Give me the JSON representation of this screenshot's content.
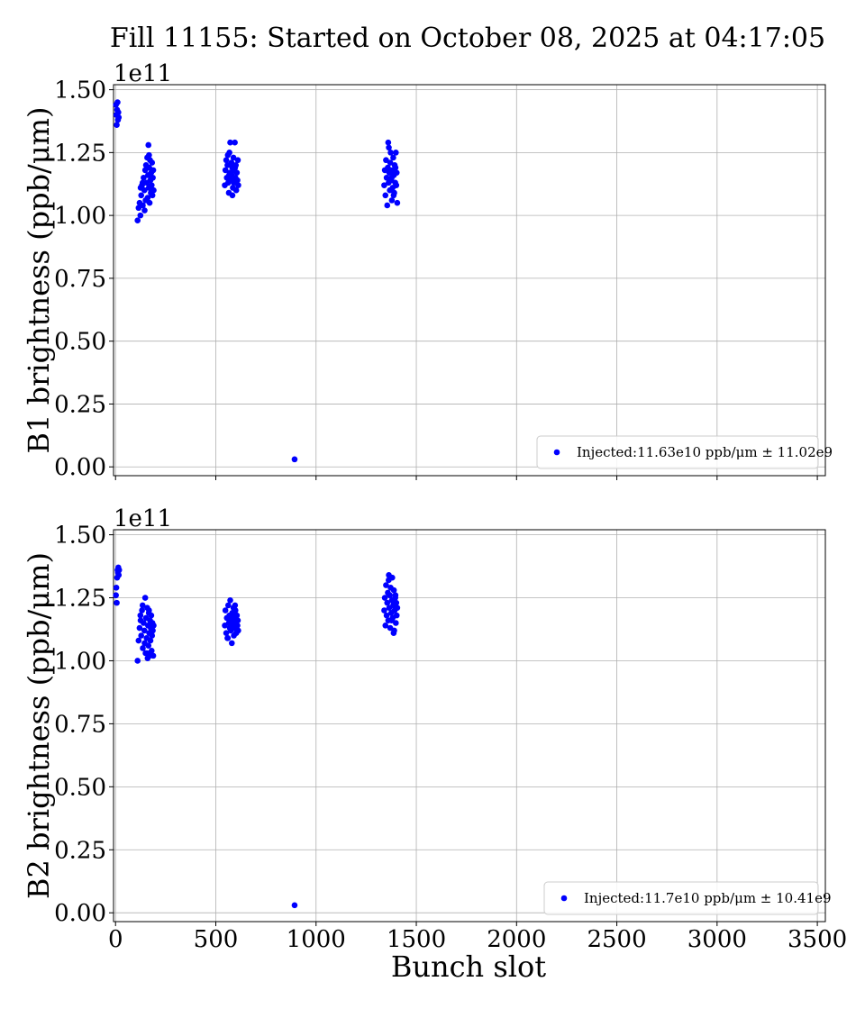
{
  "figure": {
    "title": "Fill 11155: Started on October 08, 2025 at 04:17:05",
    "xlabel": "Bunch slot"
  },
  "colors": {
    "series": "#0000ff",
    "grid": "#b0b0b0",
    "axes": "#000000"
  },
  "chart_data": [
    {
      "type": "scatter",
      "ylabel": "B1 brightness (ppb/μm)",
      "offset_text": "1e11",
      "xlim": [
        -10,
        3540
      ],
      "ylim": [
        -0.035,
        1.52
      ],
      "y_scale": 100000000000.0,
      "x_ticks": [
        0,
        500,
        1000,
        1500,
        2000,
        2500,
        3000,
        3500
      ],
      "y_ticks": [
        0.0,
        0.25,
        0.5,
        0.75,
        1.0,
        1.25,
        1.5
      ],
      "y_tick_labels": [
        "0.00",
        "0.25",
        "0.50",
        "0.75",
        "1.00",
        "1.25",
        "1.50"
      ],
      "grid": true,
      "legend_position": "lower-right",
      "series": [
        {
          "name": "Injected:11.63e10 ppb/μm ± 11.02e9",
          "color": "#0000ff",
          "points": [
            [
              2,
              1.44
            ],
            [
              4,
              1.4
            ],
            [
              6,
              1.36
            ],
            [
              8,
              1.42
            ],
            [
              10,
              1.45
            ],
            [
              12,
              1.38
            ],
            [
              14,
              1.41
            ],
            [
              16,
              1.39
            ],
            [
              110,
              0.98
            ],
            [
              115,
              1.03
            ],
            [
              120,
              1.05
            ],
            [
              124,
              1.0
            ],
            [
              128,
              1.08
            ],
            [
              132,
              1.12
            ],
            [
              136,
              1.04
            ],
            [
              140,
              1.15
            ],
            [
              144,
              1.1
            ],
            [
              148,
              1.18
            ],
            [
              150,
              1.06
            ],
            [
              152,
              1.2
            ],
            [
              155,
              1.13
            ],
            [
              158,
              1.23
            ],
            [
              160,
              1.07
            ],
            [
              162,
              1.16
            ],
            [
              164,
              1.28
            ],
            [
              166,
              1.11
            ],
            [
              168,
              1.19
            ],
            [
              170,
              1.05
            ],
            [
              172,
              1.22
            ],
            [
              174,
              1.14
            ],
            [
              176,
              1.09
            ],
            [
              178,
              1.17
            ],
            [
              180,
              1.12
            ],
            [
              182,
              1.21
            ],
            [
              184,
              1.08
            ],
            [
              186,
              1.15
            ],
            [
              188,
              1.18
            ],
            [
              190,
              1.1
            ],
            [
              135,
              1.13
            ],
            [
              145,
              1.02
            ],
            [
              125,
              1.11
            ],
            [
              157,
              1.06
            ],
            [
              167,
              1.24
            ],
            [
              173,
              1.16
            ],
            [
              545,
              1.12
            ],
            [
              548,
              1.18
            ],
            [
              552,
              1.22
            ],
            [
              555,
              1.15
            ],
            [
              558,
              1.2
            ],
            [
              562,
              1.13
            ],
            [
              565,
              1.09
            ],
            [
              568,
              1.25
            ],
            [
              570,
              1.17
            ],
            [
              572,
              1.29
            ],
            [
              575,
              1.14
            ],
            [
              578,
              1.21
            ],
            [
              580,
              1.16
            ],
            [
              582,
              1.19
            ],
            [
              585,
              1.11
            ],
            [
              588,
              1.23
            ],
            [
              590,
              1.13
            ],
            [
              592,
              1.18
            ],
            [
              595,
              1.29
            ],
            [
              598,
              1.15
            ],
            [
              600,
              1.2
            ],
            [
              602,
              1.1
            ],
            [
              605,
              1.17
            ],
            [
              608,
              1.14
            ],
            [
              610,
              1.22
            ],
            [
              612,
              1.12
            ],
            [
              560,
              1.24
            ],
            [
              583,
              1.08
            ],
            [
              596,
              1.19
            ],
            [
              566,
              1.16
            ],
            [
              1340,
              1.12
            ],
            [
              1343,
              1.18
            ],
            [
              1346,
              1.08
            ],
            [
              1349,
              1.22
            ],
            [
              1352,
              1.15
            ],
            [
              1355,
              1.04
            ],
            [
              1358,
              1.19
            ],
            [
              1360,
              1.29
            ],
            [
              1362,
              1.13
            ],
            [
              1365,
              1.17
            ],
            [
              1368,
              1.1
            ],
            [
              1370,
              1.21
            ],
            [
              1372,
              1.25
            ],
            [
              1375,
              1.14
            ],
            [
              1378,
              1.06
            ],
            [
              1380,
              1.18
            ],
            [
              1382,
              1.11
            ],
            [
              1385,
              1.23
            ],
            [
              1388,
              1.16
            ],
            [
              1390,
              1.09
            ],
            [
              1392,
              1.2
            ],
            [
              1395,
              1.13
            ],
            [
              1398,
              1.25
            ],
            [
              1400,
              1.12
            ],
            [
              1402,
              1.17
            ],
            [
              1405,
              1.05
            ],
            [
              1363,
              1.27
            ],
            [
              1377,
              1.15
            ],
            [
              1387,
              1.08
            ],
            [
              1396,
              1.19
            ],
            [
              893,
              0.03
            ]
          ]
        }
      ]
    },
    {
      "type": "scatter",
      "ylabel": "B2 brightness (ppb/μm)",
      "offset_text": "1e11",
      "xlim": [
        -10,
        3540
      ],
      "ylim": [
        -0.035,
        1.52
      ],
      "y_scale": 100000000000.0,
      "x_ticks": [
        0,
        500,
        1000,
        1500,
        2000,
        2500,
        3000,
        3500
      ],
      "x_tick_labels": [
        "0",
        "500",
        "1000",
        "1500",
        "2000",
        "2500",
        "3000",
        "3500"
      ],
      "y_ticks": [
        0.0,
        0.25,
        0.5,
        0.75,
        1.0,
        1.25,
        1.5
      ],
      "y_tick_labels": [
        "0.00",
        "0.25",
        "0.50",
        "0.75",
        "1.00",
        "1.25",
        "1.50"
      ],
      "grid": true,
      "legend_position": "lower-right",
      "series": [
        {
          "name": "Injected:11.7e10 ppb/μm ± 10.41e9",
          "color": "#0000ff",
          "points": [
            [
              2,
              1.26
            ],
            [
              4,
              1.29
            ],
            [
              6,
              1.23
            ],
            [
              8,
              1.33
            ],
            [
              10,
              1.36
            ],
            [
              12,
              1.35
            ],
            [
              14,
              1.37
            ],
            [
              16,
              1.34
            ],
            [
              18,
              1.36
            ],
            [
              110,
              1.0
            ],
            [
              115,
              1.08
            ],
            [
              120,
              1.13
            ],
            [
              124,
              1.18
            ],
            [
              128,
              1.1
            ],
            [
              132,
              1.2
            ],
            [
              136,
              1.05
            ],
            [
              140,
              1.15
            ],
            [
              144,
              1.12
            ],
            [
              148,
              1.25
            ],
            [
              150,
              1.03
            ],
            [
              152,
              1.17
            ],
            [
              155,
              1.09
            ],
            [
              158,
              1.21
            ],
            [
              160,
              1.01
            ],
            [
              162,
              1.14
            ],
            [
              164,
              1.06
            ],
            [
              166,
              1.19
            ],
            [
              168,
              1.11
            ],
            [
              170,
              1.02
            ],
            [
              172,
              1.16
            ],
            [
              174,
              1.08
            ],
            [
              176,
              1.13
            ],
            [
              178,
              1.18
            ],
            [
              180,
              1.04
            ],
            [
              182,
              1.1
            ],
            [
              184,
              1.15
            ],
            [
              186,
              1.12
            ],
            [
              188,
              1.02
            ],
            [
              190,
              1.14
            ],
            [
              135,
              1.22
            ],
            [
              145,
              1.07
            ],
            [
              125,
              1.16
            ],
            [
              157,
              1.03
            ],
            [
              167,
              1.2
            ],
            [
              545,
              1.14
            ],
            [
              548,
              1.2
            ],
            [
              552,
              1.11
            ],
            [
              555,
              1.17
            ],
            [
              558,
              1.09
            ],
            [
              562,
              1.22
            ],
            [
              565,
              1.15
            ],
            [
              568,
              1.18
            ],
            [
              570,
              1.13
            ],
            [
              572,
              1.24
            ],
            [
              575,
              1.12
            ],
            [
              578,
              1.16
            ],
            [
              580,
              1.07
            ],
            [
              582,
              1.19
            ],
            [
              585,
              1.14
            ],
            [
              588,
              1.21
            ],
            [
              590,
              1.1
            ],
            [
              592,
              1.17
            ],
            [
              595,
              1.13
            ],
            [
              598,
              1.2
            ],
            [
              600,
              1.15
            ],
            [
              602,
              1.11
            ],
            [
              605,
              1.18
            ],
            [
              608,
              1.14
            ],
            [
              610,
              1.16
            ],
            [
              612,
              1.12
            ],
            [
              560,
              1.09
            ],
            [
              583,
              1.17
            ],
            [
              596,
              1.22
            ],
            [
              1340,
              1.2
            ],
            [
              1343,
              1.25
            ],
            [
              1346,
              1.14
            ],
            [
              1349,
              1.3
            ],
            [
              1352,
              1.18
            ],
            [
              1355,
              1.23
            ],
            [
              1358,
              1.27
            ],
            [
              1360,
              1.16
            ],
            [
              1362,
              1.32
            ],
            [
              1365,
              1.21
            ],
            [
              1368,
              1.26
            ],
            [
              1370,
              1.13
            ],
            [
              1372,
              1.29
            ],
            [
              1375,
              1.19
            ],
            [
              1378,
              1.24
            ],
            [
              1380,
              1.33
            ],
            [
              1382,
              1.17
            ],
            [
              1385,
              1.22
            ],
            [
              1388,
              1.28
            ],
            [
              1390,
              1.12
            ],
            [
              1392,
              1.2
            ],
            [
              1395,
              1.25
            ],
            [
              1398,
              1.15
            ],
            [
              1400,
              1.23
            ],
            [
              1402,
              1.18
            ],
            [
              1405,
              1.21
            ],
            [
              1363,
              1.34
            ],
            [
              1377,
              1.16
            ],
            [
              1387,
              1.11
            ],
            [
              1396,
              1.26
            ],
            [
              893,
              0.03
            ]
          ]
        }
      ]
    }
  ]
}
